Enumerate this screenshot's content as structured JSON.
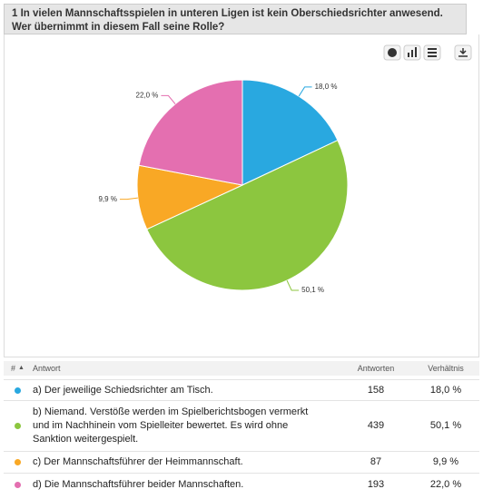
{
  "header": {
    "title": "1 In vielen Mannschaftsspielen in unteren Ligen ist kein Oberschiedsrichter anwesend. Wer übernimmt in diesem Fall seine Rolle?"
  },
  "chart_data": {
    "type": "pie",
    "categories": [
      "a) Der jeweilige Schiedsrichter am Tisch.",
      "b) Niemand. Verstöße werden im Spielberichtsbogen vermerkt und im Nachhinein vom Spielleiter bewertet. Es wird ohne Sanktion weitergespielt.",
      "c) Der Mannschaftsführer der Heimmannschaft.",
      "d) Die Mannschaftsführer beider Mannschaften."
    ],
    "values": [
      18.0,
      50.1,
      9.9,
      22.0
    ],
    "value_labels": [
      "18,0 %",
      "50,1 %",
      "9,9 %",
      "22,0 %"
    ],
    "colors": [
      "#29a8e0",
      "#8cc63f",
      "#f9a825",
      "#e46fb0"
    ]
  },
  "table": {
    "headers": [
      "#",
      "Antwort",
      "Antworten",
      "Verhältnis"
    ],
    "counts": [
      158,
      439,
      87,
      193
    ]
  }
}
